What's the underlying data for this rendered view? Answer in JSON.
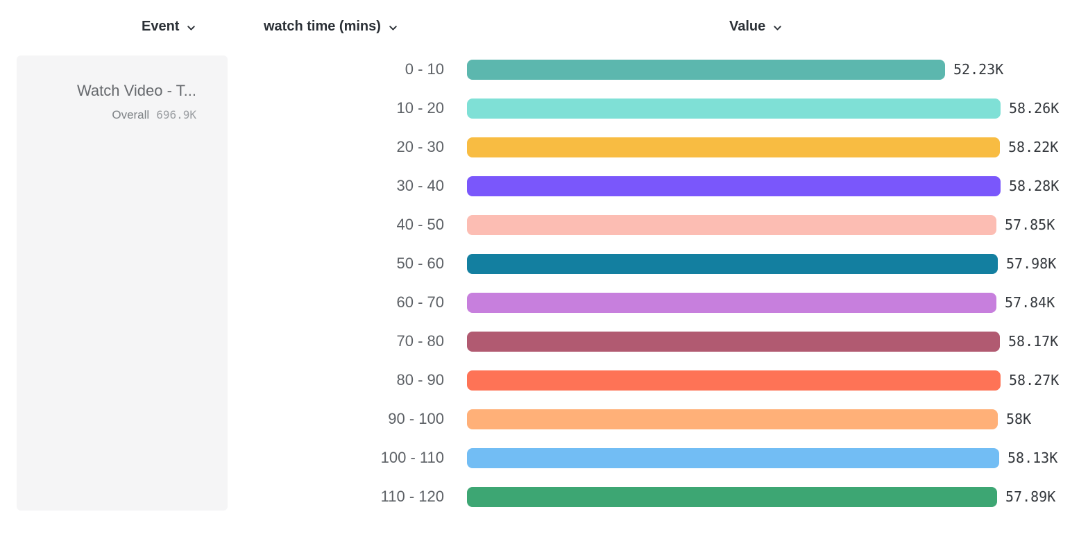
{
  "headers": {
    "event": "Event",
    "segment": "watch time (mins)",
    "value": "Value"
  },
  "legend": {
    "event_name": "Watch Video - T...",
    "overall_label": "Overall",
    "overall_value": "696.9K"
  },
  "chart_data": {
    "type": "bar",
    "orientation": "horizontal",
    "title": "",
    "series_name": "watch time (mins)",
    "legend_position": "left",
    "grid": false,
    "categories": [
      "0 - 10",
      "10 - 20",
      "20 - 30",
      "30 - 40",
      "40 - 50",
      "50 - 60",
      "60 - 70",
      "70 - 80",
      "80 - 90",
      "90 - 100",
      "100 - 110",
      "110 - 120"
    ],
    "values": [
      52230,
      58260,
      58220,
      58280,
      57850,
      57980,
      57840,
      58170,
      58270,
      58000,
      58130,
      57890
    ],
    "value_labels": [
      "52.23K",
      "58.26K",
      "58.22K",
      "58.28K",
      "57.85K",
      "57.98K",
      "57.84K",
      "58.17K",
      "58.27K",
      "58K",
      "58.13K",
      "57.89K"
    ],
    "bar_colors": [
      "#5cb7ae",
      "#7fe0d6",
      "#f8bc42",
      "#7a57fb",
      "#fcbdb3",
      "#137fa0",
      "#c77fdd",
      "#b15a71",
      "#fe7356",
      "#ffb078",
      "#72bdf4",
      "#3da673"
    ],
    "overall_total": "696.9K",
    "event": "Watch Video - T...",
    "xlim": [
      0,
      58280
    ]
  },
  "colors": {
    "background": "#ffffff",
    "panel_bg": "#f5f5f6",
    "header_text": "#2b3036",
    "bucket_label_text": "#5d6166",
    "value_text": "#33373c",
    "event_name_text": "#66696d",
    "overall_label_text": "#7e8286",
    "overall_value_text": "#9b9ea2"
  }
}
